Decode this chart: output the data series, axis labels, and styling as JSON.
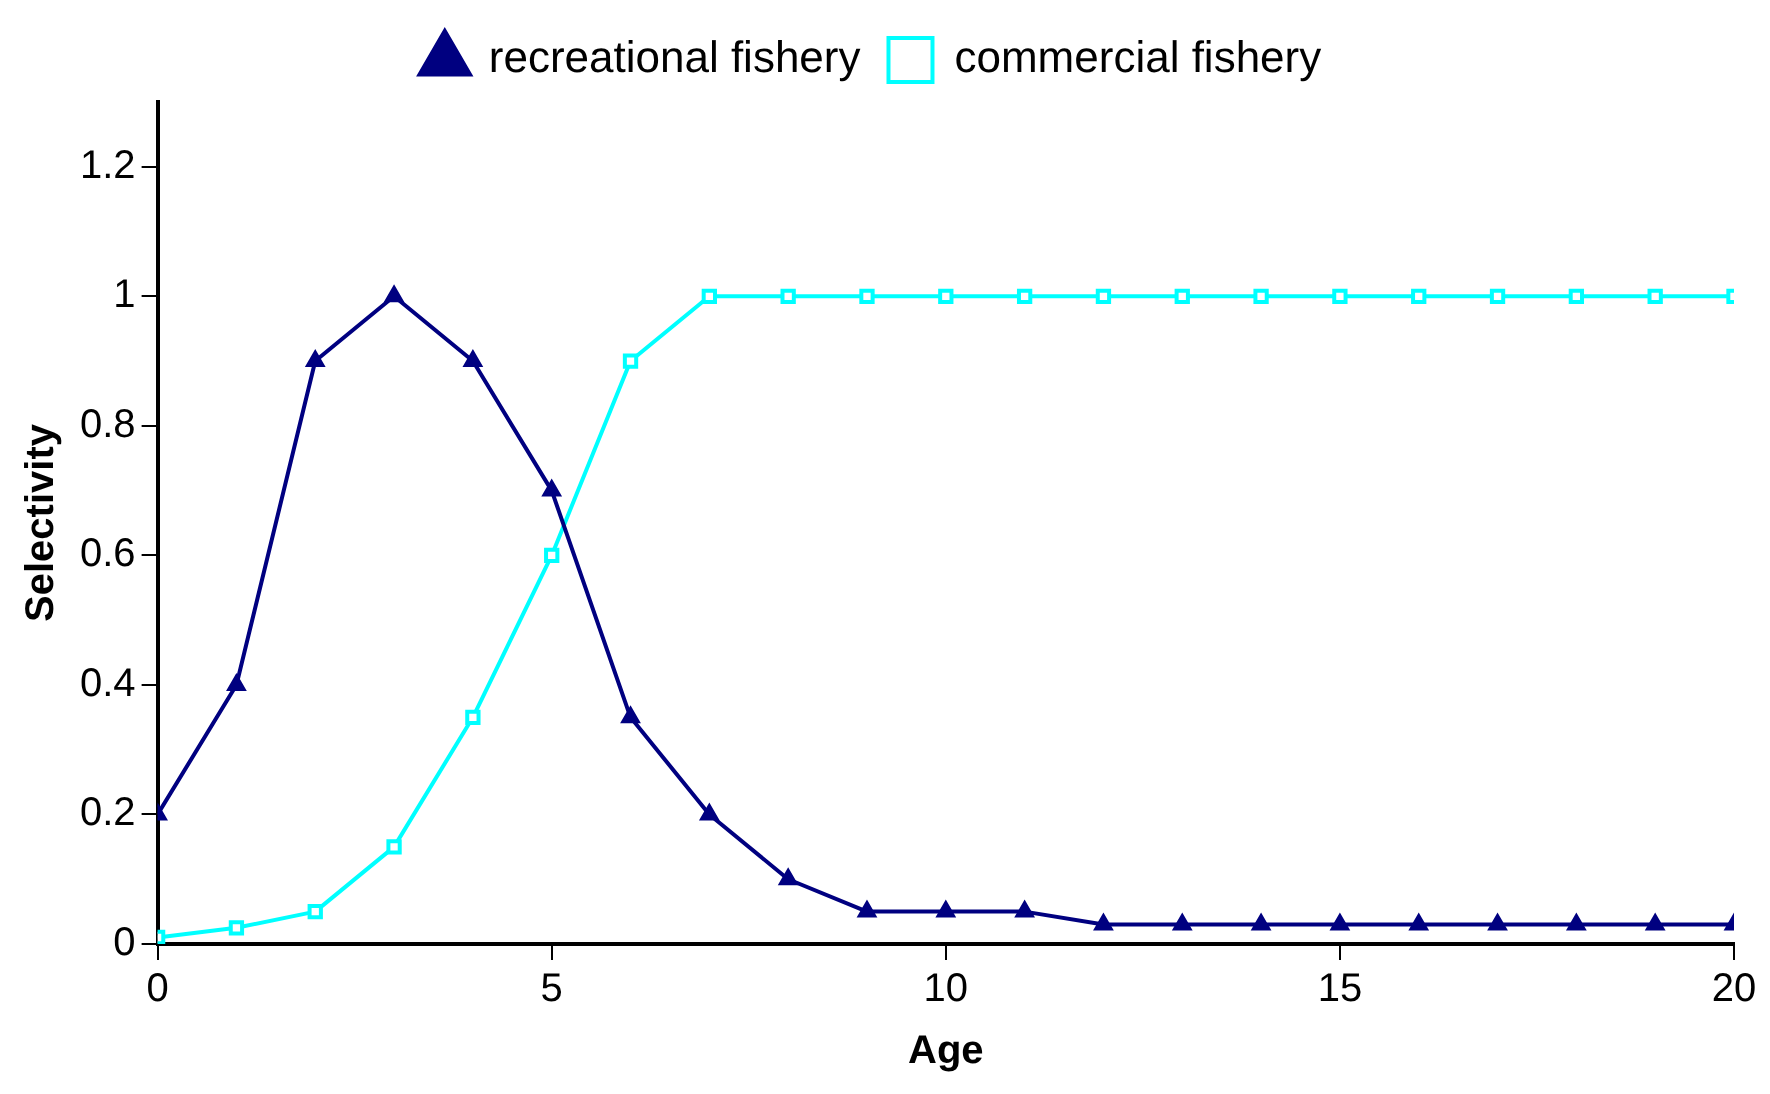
{
  "chart_data": {
    "type": "line",
    "xlabel": "Age",
    "ylabel": "Selectivity",
    "x": [
      0,
      1,
      2,
      3,
      4,
      5,
      6,
      7,
      8,
      9,
      10,
      11,
      12,
      13,
      14,
      15,
      16,
      17,
      18,
      19,
      20
    ],
    "series": [
      {
        "name": "recreational fishery",
        "color": "#000080",
        "marker": "triangle",
        "values": [
          0.2,
          0.4,
          0.9,
          1,
          0.9,
          0.7,
          0.35,
          0.2,
          0.1,
          0.05,
          0.05,
          0.05,
          0.03,
          0.03,
          0.03,
          0.03,
          0.03,
          0.03,
          0.03,
          0.03,
          0.03
        ]
      },
      {
        "name": "commercial fishery",
        "color": "#00ffff",
        "marker": "square",
        "values": [
          0.01,
          0.025,
          0.05,
          0.15,
          0.35,
          0.6,
          0.9,
          1,
          1,
          1,
          1,
          1,
          1,
          1,
          1,
          1,
          1,
          1,
          1,
          1,
          1
        ]
      }
    ],
    "xlim": [
      0,
      20
    ],
    "xticks": [
      0,
      5,
      10,
      15,
      20
    ],
    "ylim": [
      0,
      1.3
    ],
    "yticks": [
      0,
      0.2,
      0.4,
      0.6,
      0.8,
      1,
      1.2
    ],
    "grid": false,
    "legend": "top",
    "line_style": "solid"
  }
}
